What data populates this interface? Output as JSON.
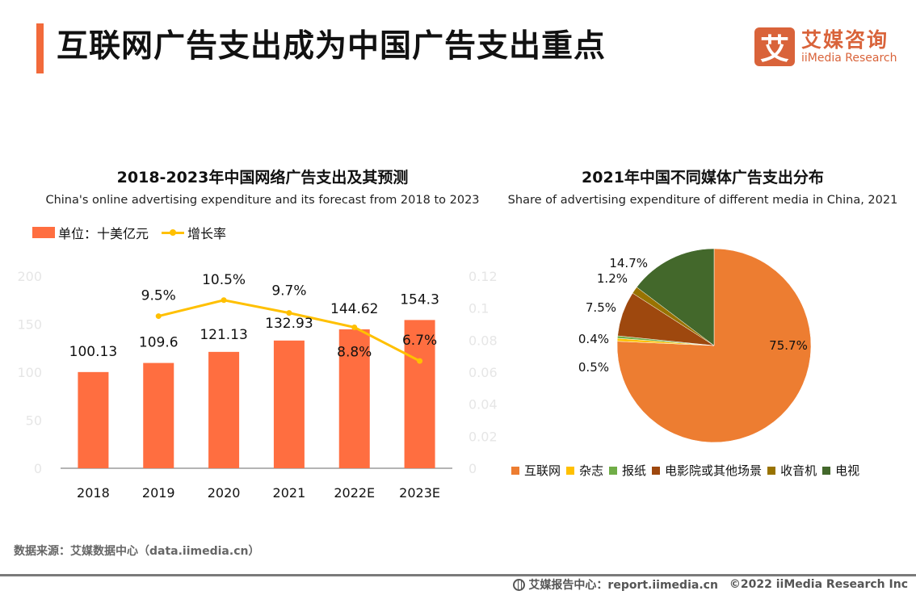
{
  "header": {
    "title": "互联网广告支出成为中国广告支出重点",
    "logo_mark": "艾",
    "logo_cn": "艾媒咨询",
    "logo_en": "iiMedia Research",
    "accent_color": "#f26a3b"
  },
  "chart_data": [
    {
      "type": "bar",
      "title": "2018-2023年中国网络广告支出及其预测",
      "subtitle": "China's online advertising expenditure and its forecast from 2018 to 2023",
      "categories": [
        "2018",
        "2019",
        "2020",
        "2021",
        "2022E",
        "2023E"
      ],
      "series": [
        {
          "name": "单位：十美亿元",
          "kind": "bar",
          "axis": "left",
          "color": "#ff6e40",
          "values": [
            100.13,
            109.6,
            121.13,
            132.93,
            144.62,
            154.3
          ],
          "labels": [
            "100.13",
            "109.6",
            "121.13",
            "132.93",
            "144.62",
            "154.3"
          ]
        },
        {
          "name": "增长率",
          "kind": "line",
          "axis": "right",
          "color": "#ffc000",
          "values": [
            null,
            0.095,
            0.105,
            0.097,
            0.088,
            0.067
          ],
          "labels": [
            null,
            "9.5%",
            "10.5%",
            "9.7%",
            "8.8%",
            "6.7%"
          ]
        }
      ],
      "ylim": [
        0,
        200
      ],
      "yticks": [
        "0",
        "50",
        "100",
        "150",
        "200"
      ],
      "y2lim": [
        0,
        0.12
      ],
      "y2ticks": [
        "0",
        "0.02",
        "0.04",
        "0.06",
        "0.08",
        "0.1",
        "0.12"
      ],
      "xlabel": "",
      "ylabel": "",
      "grid": false,
      "legend": "top-left"
    },
    {
      "type": "pie",
      "title": "2021年中国不同媒体广告支出分布",
      "subtitle": "Share of advertising expenditure of different media in China, 2021",
      "slices": [
        {
          "name": "互联网",
          "value": 75.7,
          "label": "75.7%",
          "color": "#ed7d31"
        },
        {
          "name": "杂志",
          "value": 0.5,
          "label": "0.5%",
          "color": "#ffc000"
        },
        {
          "name": "报纸",
          "value": 0.4,
          "label": "0.4%",
          "color": "#70ad47"
        },
        {
          "name": "电影院或其他场景",
          "value": 7.5,
          "label": "7.5%",
          "color": "#9e480e"
        },
        {
          "name": "收音机",
          "value": 1.2,
          "label": "1.2%",
          "color": "#997300"
        },
        {
          "name": "电视",
          "value": 14.7,
          "label": "14.7%",
          "color": "#43682b"
        }
      ],
      "start": "12-o'clock",
      "direction": "clockwise",
      "legend": "bottom"
    }
  ],
  "footer": {
    "source": "数据来源：艾媒数据中心（data.iimedia.cn）",
    "report_center": "艾媒报告中心：report.iimedia.cn",
    "copyright": "©2022  iiMedia Research  Inc"
  }
}
